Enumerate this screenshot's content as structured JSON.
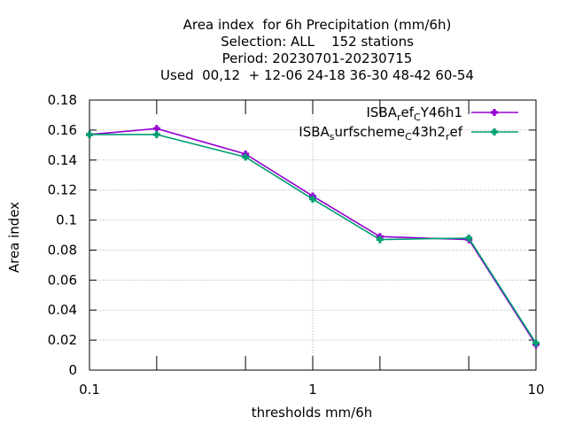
{
  "chart_data": {
    "type": "line",
    "title_lines": [
      "Area index  for 6h Precipitation (mm/6h)",
      "Selection: ALL    152 stations",
      "Period: 20230701-20230715",
      "Used  00,12  + 12-06 24-18 36-30 48-42 60-54"
    ],
    "xlabel": "thresholds mm/6h",
    "ylabel": "Area index",
    "x_scale": "log",
    "xlim": [
      0.1,
      10
    ],
    "ylim": [
      0,
      0.18
    ],
    "x_ticks": [
      {
        "value": 0.1,
        "label": "0.1"
      },
      {
        "value": 1,
        "label": "1"
      },
      {
        "value": 10,
        "label": "10"
      }
    ],
    "x_minor_ticks": [
      0.2,
      0.5,
      2,
      5
    ],
    "y_ticks": [
      {
        "value": 0,
        "label": "0"
      },
      {
        "value": 0.02,
        "label": "0.02"
      },
      {
        "value": 0.04,
        "label": "0.04"
      },
      {
        "value": 0.06,
        "label": "0.06"
      },
      {
        "value": 0.08,
        "label": "0.08"
      },
      {
        "value": 0.1,
        "label": "0.1"
      },
      {
        "value": 0.12,
        "label": "0.12"
      },
      {
        "value": 0.14,
        "label": "0.14"
      },
      {
        "value": 0.16,
        "label": "0.16"
      },
      {
        "value": 0.18,
        "label": "0.18"
      }
    ],
    "grid": true,
    "legend_position": "top-right",
    "series": [
      {
        "name": "ISBA_ref_CY46h1",
        "legend_parts": [
          {
            "t": "ISBA",
            "sub": false
          },
          {
            "t": "r",
            "sub": true
          },
          {
            "t": "ef",
            "sub": false
          },
          {
            "t": "C",
            "sub": true
          },
          {
            "t": "Y46h1",
            "sub": false
          }
        ],
        "color": "#9400d3",
        "x": [
          0.1,
          0.2,
          0.5,
          1,
          2,
          5,
          10
        ],
        "y": [
          0.157,
          0.161,
          0.144,
          0.116,
          0.089,
          0.087,
          0.017
        ]
      },
      {
        "name": "ISBA_surfscheme_C43h2_ref",
        "legend_parts": [
          {
            "t": "ISBA",
            "sub": false
          },
          {
            "t": "s",
            "sub": true
          },
          {
            "t": "urfscheme",
            "sub": false
          },
          {
            "t": "C",
            "sub": true
          },
          {
            "t": "43h2",
            "sub": false
          },
          {
            "t": "r",
            "sub": true
          },
          {
            "t": "ef",
            "sub": false
          }
        ],
        "color": "#009e73",
        "x": [
          0.1,
          0.2,
          0.5,
          1,
          2,
          5,
          10
        ],
        "y": [
          0.157,
          0.157,
          0.142,
          0.114,
          0.087,
          0.088,
          0.018
        ]
      }
    ]
  }
}
